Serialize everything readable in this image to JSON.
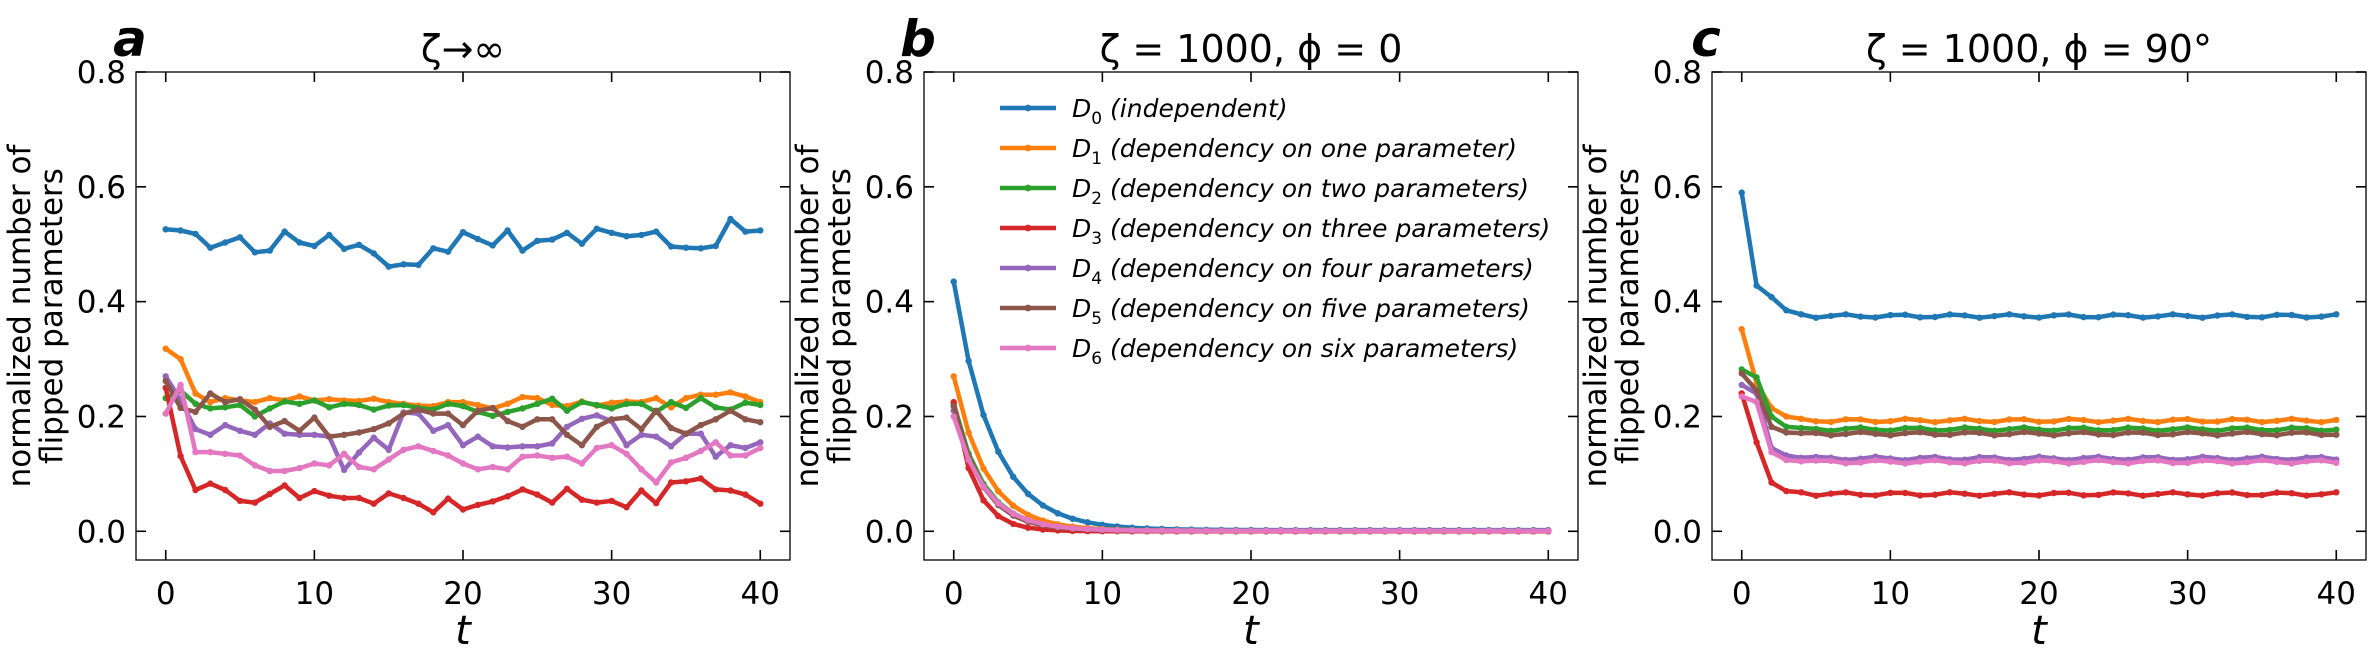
{
  "chart_data": [
    {
      "type": "line",
      "panel_label": "a",
      "title": "ζ→∞",
      "xlabel": "t",
      "ylabel_line1": "normalized number of",
      "ylabel_line2": "flipped parameters",
      "xlim": [
        -2,
        42
      ],
      "ylim": [
        -0.05,
        0.8
      ],
      "xticks": [
        0,
        10,
        20,
        30,
        40
      ],
      "yticks": [
        0.0,
        0.2,
        0.4,
        0.6,
        0.8
      ],
      "series": [
        {
          "name": "D0",
          "color": "#1f77b4",
          "values": [
            0.526,
            0.524,
            0.518,
            0.494,
            0.503,
            0.512,
            0.486,
            0.489,
            0.522,
            0.503,
            0.497,
            0.516,
            0.492,
            0.499,
            0.484,
            0.461,
            0.465,
            0.464,
            0.493,
            0.487,
            0.521,
            0.509,
            0.498,
            0.524,
            0.489,
            0.506,
            0.508,
            0.52,
            0.501,
            0.527,
            0.52,
            0.514,
            0.516,
            0.522,
            0.496,
            0.494,
            0.493,
            0.497,
            0.544,
            0.522,
            0.524
          ]
        },
        {
          "name": "D1",
          "color": "#ff7f0e",
          "values": [
            0.318,
            0.3,
            0.24,
            0.225,
            0.232,
            0.228,
            0.225,
            0.232,
            0.228,
            0.235,
            0.228,
            0.23,
            0.228,
            0.227,
            0.231,
            0.225,
            0.222,
            0.219,
            0.218,
            0.225,
            0.225,
            0.22,
            0.214,
            0.222,
            0.234,
            0.232,
            0.22,
            0.218,
            0.226,
            0.219,
            0.224,
            0.226,
            0.225,
            0.232,
            0.216,
            0.232,
            0.238,
            0.238,
            0.242,
            0.235,
            0.225
          ]
        },
        {
          "name": "D2",
          "color": "#2ca02c",
          "values": [
            0.232,
            0.245,
            0.222,
            0.214,
            0.216,
            0.22,
            0.2,
            0.214,
            0.226,
            0.222,
            0.228,
            0.216,
            0.222,
            0.22,
            0.212,
            0.219,
            0.22,
            0.215,
            0.212,
            0.222,
            0.218,
            0.208,
            0.201,
            0.208,
            0.214,
            0.222,
            0.231,
            0.21,
            0.225,
            0.22,
            0.214,
            0.222,
            0.222,
            0.208,
            0.225,
            0.215,
            0.232,
            0.216,
            0.212,
            0.224,
            0.22
          ]
        },
        {
          "name": "D3",
          "color": "#d62728",
          "values": [
            0.25,
            0.131,
            0.072,
            0.083,
            0.072,
            0.053,
            0.05,
            0.065,
            0.08,
            0.058,
            0.07,
            0.062,
            0.058,
            0.058,
            0.048,
            0.066,
            0.058,
            0.048,
            0.033,
            0.057,
            0.038,
            0.046,
            0.052,
            0.061,
            0.073,
            0.064,
            0.05,
            0.074,
            0.055,
            0.05,
            0.053,
            0.042,
            0.071,
            0.049,
            0.085,
            0.087,
            0.092,
            0.073,
            0.071,
            0.064,
            0.048
          ]
        },
        {
          "name": "D4",
          "color": "#9467bd",
          "values": [
            0.27,
            0.228,
            0.178,
            0.168,
            0.185,
            0.175,
            0.168,
            0.188,
            0.17,
            0.168,
            0.168,
            0.165,
            0.107,
            0.137,
            0.163,
            0.142,
            0.207,
            0.205,
            0.175,
            0.185,
            0.15,
            0.165,
            0.148,
            0.146,
            0.148,
            0.148,
            0.153,
            0.182,
            0.196,
            0.202,
            0.192,
            0.15,
            0.168,
            0.165,
            0.148,
            0.17,
            0.17,
            0.13,
            0.15,
            0.145,
            0.155
          ]
        },
        {
          "name": "D5",
          "color": "#8c564b",
          "values": [
            0.262,
            0.215,
            0.208,
            0.24,
            0.225,
            0.23,
            0.212,
            0.182,
            0.192,
            0.175,
            0.198,
            0.165,
            0.168,
            0.172,
            0.178,
            0.188,
            0.205,
            0.212,
            0.205,
            0.205,
            0.185,
            0.21,
            0.215,
            0.192,
            0.182,
            0.195,
            0.195,
            0.168,
            0.15,
            0.182,
            0.195,
            0.198,
            0.178,
            0.21,
            0.18,
            0.17,
            0.185,
            0.195,
            0.21,
            0.195,
            0.19
          ]
        },
        {
          "name": "D6",
          "color": "#e377c2",
          "values": [
            0.205,
            0.255,
            0.138,
            0.138,
            0.135,
            0.132,
            0.115,
            0.105,
            0.105,
            0.11,
            0.118,
            0.115,
            0.135,
            0.112,
            0.108,
            0.125,
            0.142,
            0.148,
            0.14,
            0.132,
            0.118,
            0.108,
            0.112,
            0.108,
            0.13,
            0.132,
            0.128,
            0.13,
            0.118,
            0.145,
            0.15,
            0.135,
            0.108,
            0.085,
            0.12,
            0.128,
            0.14,
            0.155,
            0.132,
            0.132,
            0.145
          ]
        }
      ]
    },
    {
      "type": "line",
      "panel_label": "b",
      "title": "ζ = 1000,  ϕ = 0",
      "xlabel": "t",
      "ylabel_line1": "normalized number of",
      "ylabel_line2": "flipped parameters",
      "xlim": [
        -2,
        42
      ],
      "ylim": [
        -0.05,
        0.8
      ],
      "xticks": [
        0,
        10,
        20,
        30,
        40
      ],
      "yticks": [
        0.0,
        0.2,
        0.4,
        0.6,
        0.8
      ],
      "legend_position": "upper",
      "legend": [
        {
          "sym": "D",
          "sub": "0",
          "text": " (independent)",
          "color": "#1f77b4"
        },
        {
          "sym": "D",
          "sub": "1",
          "text": " (dependency on one parameter)",
          "color": "#ff7f0e"
        },
        {
          "sym": "D",
          "sub": "2",
          "text": " (dependency on two parameters)",
          "color": "#2ca02c"
        },
        {
          "sym": "D",
          "sub": "3",
          "text": " (dependency on three parameters)",
          "color": "#d62728"
        },
        {
          "sym": "D",
          "sub": "4",
          "text": " (dependency on four parameters)",
          "color": "#9467bd"
        },
        {
          "sym": "D",
          "sub": "5",
          "text": " (dependency on five parameters)",
          "color": "#8c564b"
        },
        {
          "sym": "D",
          "sub": "6",
          "text": " (dependency on six parameters)",
          "color": "#e377c2"
        }
      ],
      "series": [
        {
          "name": "D0",
          "color": "#1f77b4",
          "decay": {
            "start": 0.435,
            "tau": 2.6,
            "floor": 0.002
          }
        },
        {
          "name": "D1",
          "color": "#ff7f0e",
          "decay": {
            "start": 0.27,
            "tau": 2.2,
            "floor": 0.001
          }
        },
        {
          "name": "D2",
          "color": "#2ca02c",
          "decay": {
            "start": 0.222,
            "tau": 2.0,
            "floor": 0.001
          }
        },
        {
          "name": "D3",
          "color": "#d62728",
          "decay": {
            "start": 0.225,
            "tau": 1.4,
            "floor": 0.0
          }
        },
        {
          "name": "D4",
          "color": "#9467bd",
          "decay": {
            "start": 0.21,
            "tau": 2.0,
            "floor": 0.001
          }
        },
        {
          "name": "D5",
          "color": "#8c564b",
          "decay": {
            "start": 0.218,
            "tau": 1.9,
            "floor": 0.001
          }
        },
        {
          "name": "D6",
          "color": "#e377c2",
          "decay": {
            "start": 0.2,
            "tau": 2.1,
            "floor": 0.001
          }
        }
      ]
    },
    {
      "type": "line",
      "panel_label": "c",
      "title": "ζ = 1000,  ϕ = 90°",
      "xlabel": "t",
      "ylabel_line1": "normalized number of",
      "ylabel_line2": "flipped parameters",
      "xlim": [
        -2,
        42
      ],
      "ylim": [
        -0.05,
        0.8
      ],
      "xticks": [
        0,
        10,
        20,
        30,
        40
      ],
      "yticks": [
        0.0,
        0.2,
        0.4,
        0.6,
        0.8
      ],
      "series": [
        {
          "name": "D0",
          "color": "#1f77b4",
          "head": [
            0.59,
            0.428,
            0.408,
            0.385,
            0.378
          ],
          "floor": 0.375
        },
        {
          "name": "D1",
          "color": "#ff7f0e",
          "head": [
            0.352,
            0.258,
            0.215,
            0.2,
            0.196
          ],
          "floor": 0.193
        },
        {
          "name": "D2",
          "color": "#2ca02c",
          "head": [
            0.282,
            0.268,
            0.2,
            0.182,
            0.18
          ],
          "floor": 0.178
        },
        {
          "name": "D3",
          "color": "#d62728",
          "head": [
            0.24,
            0.155,
            0.085,
            0.07,
            0.068
          ],
          "floor": 0.065
        },
        {
          "name": "D4",
          "color": "#9467bd",
          "head": [
            0.255,
            0.24,
            0.145,
            0.132,
            0.128
          ],
          "floor": 0.127
        },
        {
          "name": "D5",
          "color": "#8c564b",
          "head": [
            0.275,
            0.245,
            0.182,
            0.172,
            0.171
          ],
          "floor": 0.17
        },
        {
          "name": "D6",
          "color": "#e377c2",
          "head": [
            0.235,
            0.225,
            0.138,
            0.124,
            0.122
          ],
          "floor": 0.121
        }
      ]
    }
  ]
}
